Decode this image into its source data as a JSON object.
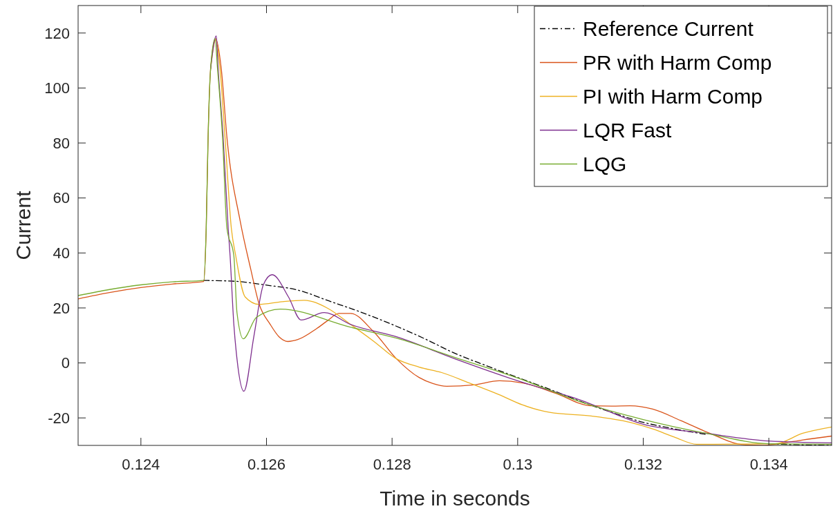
{
  "chart_data": {
    "type": "line",
    "xlabel": "Time in seconds",
    "ylabel": "Current",
    "xlim": [
      0.123,
      0.135
    ],
    "xticks": [
      0.124,
      0.126,
      0.128,
      0.13,
      0.132,
      0.134
    ],
    "ylim": [
      -30,
      130
    ],
    "yticks": [
      -20,
      0,
      20,
      40,
      60,
      80,
      100,
      120
    ],
    "grid": false,
    "legend": "top right",
    "marker": "none",
    "series": [
      {
        "name": "Reference Current",
        "color": "#000000",
        "line_style": "dashdot",
        "x": [
          0.125,
          0.1255,
          0.126,
          0.1265,
          0.127,
          0.1275,
          0.128,
          0.1285,
          0.129,
          0.1295,
          0.13,
          0.1305,
          0.131,
          0.1315,
          0.132,
          0.1325,
          0.133,
          0.1335,
          0.134,
          0.1345,
          0.135
        ],
        "values": [
          30,
          29.7,
          28.3,
          26.5,
          22.5,
          18.5,
          14,
          9,
          3.5,
          -1,
          -5.3,
          -9.5,
          -14,
          -18,
          -21.6,
          -24,
          -26,
          null,
          -29.4,
          -29.8,
          -30
        ]
      },
      {
        "name": "PR with Harm Comp",
        "color": "#d95319",
        "line_style": "solid",
        "x": [
          0.123,
          0.1235,
          0.124,
          0.1245,
          0.125,
          0.12504,
          0.12507,
          0.12511,
          0.12519,
          0.12528,
          0.12537,
          0.12558,
          0.12575,
          0.12588,
          0.12606,
          0.1262,
          0.12634,
          0.1265,
          0.1268,
          0.12698,
          0.12715,
          0.12734,
          0.1277,
          0.12807,
          0.12843,
          0.12865,
          0.12887,
          0.1293,
          0.12971,
          0.13008,
          0.1306,
          0.13117,
          0.1315,
          0.13179,
          0.13215,
          0.1326,
          0.13303,
          0.13361,
          0.1339,
          0.13416,
          0.13454,
          0.135
        ],
        "values": [
          23.3,
          25.6,
          27.4,
          28.7,
          29.6,
          49,
          82,
          107,
          118,
          107,
          82,
          51.7,
          34,
          21.6,
          14,
          9.5,
          7.8,
          8.5,
          12.5,
          15.5,
          18,
          18,
          11.5,
          1.5,
          -5.3,
          -7.5,
          -8.5,
          -8,
          -6.5,
          -7.3,
          -11,
          -15.6,
          -15.7,
          -15.6,
          -16.8,
          -21,
          -25.3,
          -29.8,
          -30,
          -29.4,
          -28,
          -26.6
        ]
      },
      {
        "name": "PI with Harm Comp",
        "color": "#edb120",
        "line_style": "solid",
        "x": [
          0.12511,
          0.12519,
          0.12526,
          0.12534,
          0.12544,
          0.12551,
          0.12566,
          0.12588,
          0.12625,
          0.1266,
          0.12698,
          0.12734,
          0.1277,
          0.12807,
          0.12843,
          0.12879,
          0.12923,
          0.1297,
          0.13008,
          0.13051,
          0.13117,
          0.13179,
          0.13215,
          0.1325,
          0.13285,
          0.1341,
          0.13454,
          0.135
        ],
        "values": [
          107,
          117.5,
          107,
          82,
          49,
          39,
          24,
          21.3,
          22.3,
          22.8,
          19.8,
          14,
          8,
          1.5,
          -1.5,
          -3.5,
          -7.3,
          -11.5,
          -15.3,
          -18,
          -19.3,
          -21.6,
          -24,
          -27,
          -29.6,
          -29.4,
          -25.6,
          -23.3
        ]
      },
      {
        "name": "LQR Fast",
        "color": "#7e2f8e",
        "line_style": "solid",
        "x": [
          0.12511,
          0.1252,
          0.12523,
          0.12531,
          0.12539,
          0.12542,
          0.12548,
          0.12553,
          0.12564,
          0.1258,
          0.12595,
          0.12609,
          0.12635,
          0.12655,
          0.12692,
          0.12734,
          0.12807,
          0.129,
          0.13,
          0.131,
          0.132,
          0.133,
          0.134,
          0.135
        ],
        "values": [
          107,
          119,
          107,
          82,
          49,
          39,
          14,
          1.5,
          -10.3,
          9.8,
          28.4,
          32.1,
          24,
          15.6,
          18.3,
          14,
          9.5,
          1.5,
          -6.5,
          -13.5,
          -22.3,
          -25.6,
          -28.4,
          -29.1
        ]
      },
      {
        "name": "LQG",
        "color": "#77ac30",
        "line_style": "solid",
        "x": [
          0.123,
          0.1235,
          0.124,
          0.1245,
          0.125,
          0.12504,
          0.12507,
          0.12511,
          0.12518,
          0.12522,
          0.1253,
          0.12537,
          0.12548,
          0.12553,
          0.12563,
          0.12584,
          0.12622,
          0.12734,
          0.12807,
          0.129,
          0.13,
          0.13106,
          0.132,
          0.133,
          0.134,
          0.135
        ],
        "values": [
          24.5,
          26.7,
          28.4,
          29.5,
          30,
          49,
          82,
          107,
          118,
          107,
          82,
          49,
          39,
          18.3,
          8.8,
          16.6,
          19.6,
          13,
          9,
          2,
          -5.5,
          -14.6,
          -20.6,
          -25.6,
          -29.4,
          -29.6
        ]
      }
    ]
  }
}
